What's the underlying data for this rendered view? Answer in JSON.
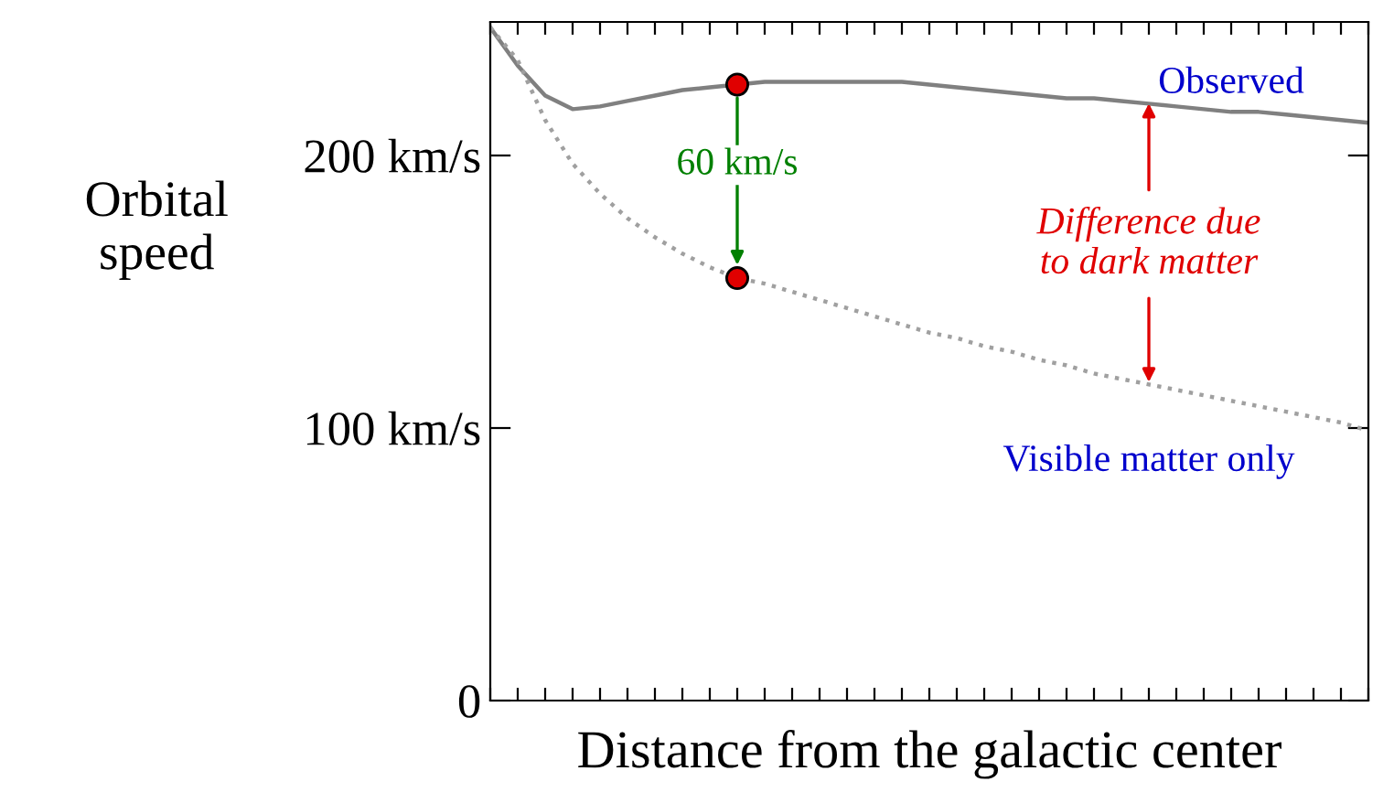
{
  "chart_data": {
    "type": "line",
    "xlabel": "Distance from the galactic center",
    "ylabel": "Orbital speed",
    "categories": [
      null,
      null,
      null,
      null,
      null,
      null,
      null,
      null,
      null,
      null,
      null,
      null,
      null,
      null,
      null,
      null,
      null,
      null,
      null,
      null,
      null,
      null,
      null,
      null,
      null,
      null,
      null,
      null,
      null,
      null,
      null,
      null,
      null
    ],
    "series": [
      {
        "name": "Observed",
        "color": "#808080",
        "line_style": "solid",
        "values": [
          247,
          233,
          222,
          217,
          218,
          220,
          222,
          224,
          225,
          226,
          227,
          227,
          227,
          227,
          227,
          227,
          226,
          225,
          224,
          223,
          222,
          221,
          221,
          220,
          219,
          218,
          217,
          216,
          216,
          215,
          214,
          213,
          212
        ]
      },
      {
        "name": "Visible matter only",
        "color": "#a0a0a0",
        "line_style": "dotted",
        "values": [
          247,
          235,
          213,
          197,
          186,
          177,
          170,
          164,
          159,
          155,
          153,
          150,
          147,
          144,
          141,
          138,
          135,
          133,
          130,
          128,
          125,
          123,
          120,
          118,
          116,
          114,
          112,
          110,
          108,
          106,
          104,
          102,
          99
        ]
      },
      {
        "type": "scatter",
        "color": "#e00000",
        "values": [
          null,
          null,
          null,
          null,
          null,
          null,
          null,
          null,
          null,
          226,
          null,
          null,
          null,
          null,
          null,
          null,
          null,
          null,
          null,
          null,
          null,
          null,
          null,
          null,
          null,
          null,
          null,
          null,
          null,
          null,
          null,
          null,
          null
        ]
      },
      {
        "type": "scatter",
        "color": "#e00000",
        "values": [
          null,
          null,
          null,
          null,
          null,
          null,
          null,
          null,
          null,
          155,
          null,
          null,
          null,
          null,
          null,
          null,
          null,
          null,
          null,
          null,
          null,
          null,
          null,
          null,
          null,
          null,
          null,
          null,
          null,
          null,
          null,
          null,
          null
        ]
      }
    ],
    "annotations": [
      "60 km/s",
      "Difference due\nto dark matter"
    ],
    "ylim": [
      0,
      249
    ],
    "yticks": [
      0,
      {
        "value": 100,
        "label": "100 km/s"
      },
      {
        "value": 200,
        "label": "200 km/s"
      }
    ],
    "grid": false,
    "legend": false
  }
}
